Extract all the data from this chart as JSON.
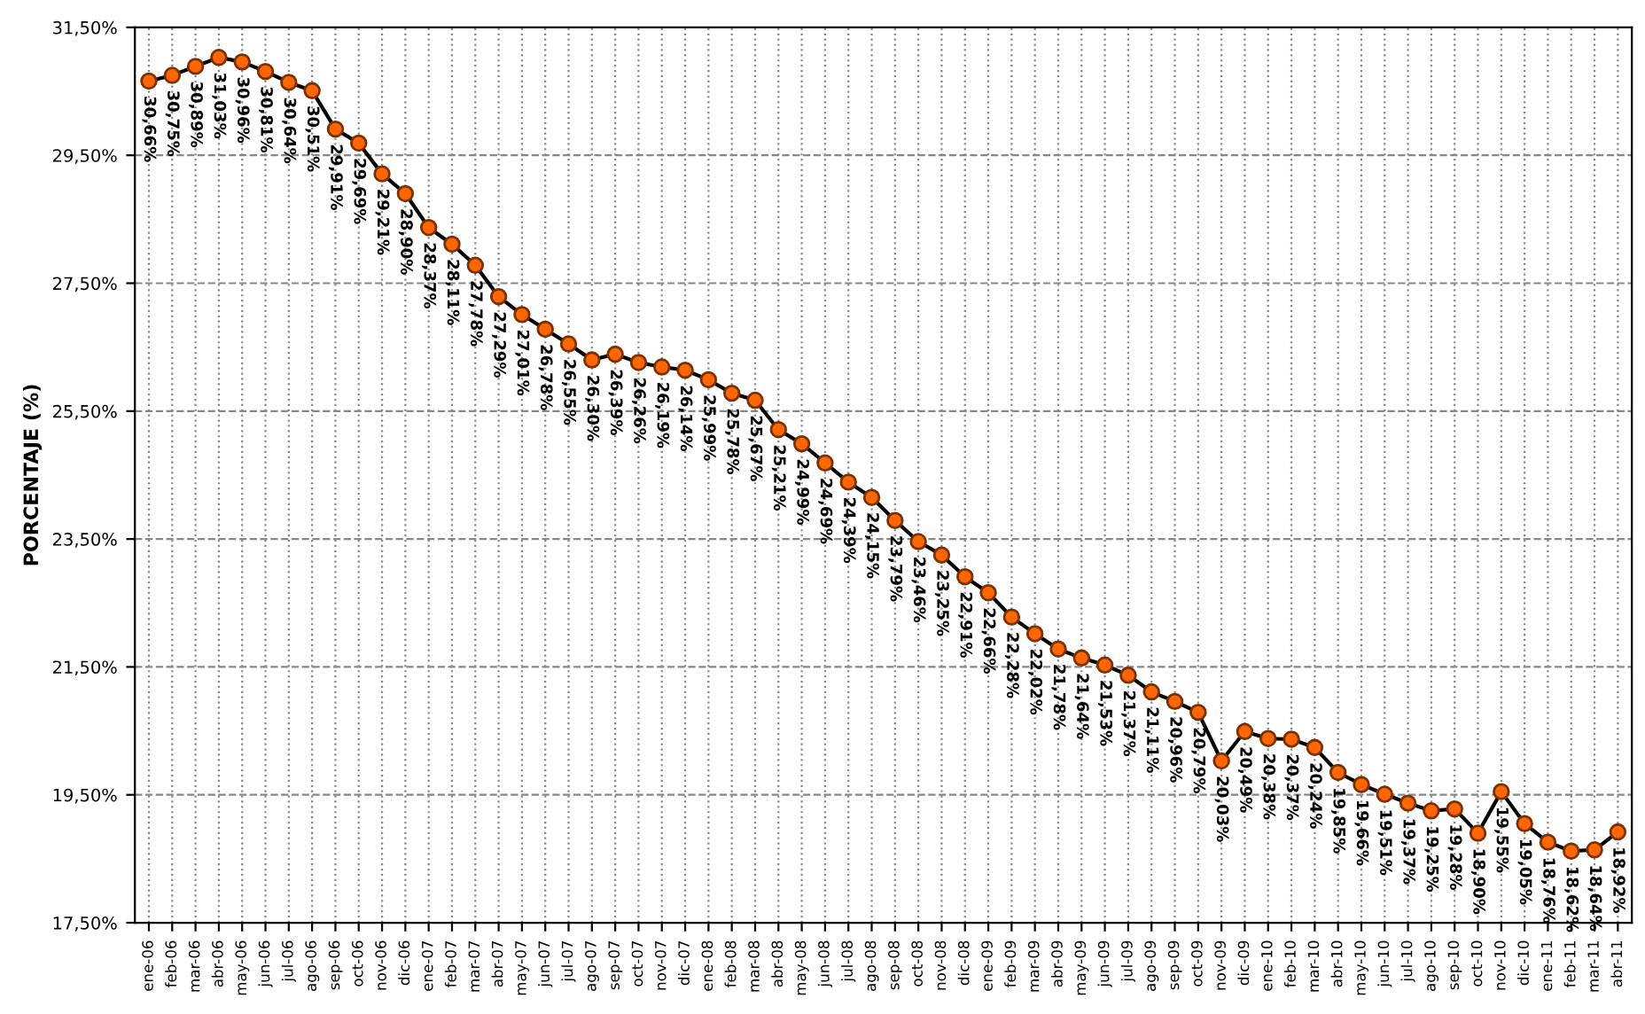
{
  "chart_data": {
    "type": "line",
    "ylabel": "PORCENTAJE (%)",
    "categories": [
      "ene-06",
      "feb-06",
      "mar-06",
      "abr-06",
      "may-06",
      "jun-06",
      "jul-06",
      "ago-06",
      "sep-06",
      "oct-06",
      "nov-06",
      "dic-06",
      "ene-07",
      "feb-07",
      "mar-07",
      "abr-07",
      "may-07",
      "jun-07",
      "jul-07",
      "ago-07",
      "sep-07",
      "oct-07",
      "nov-07",
      "dic-07",
      "ene-08",
      "feb-08",
      "mar-08",
      "abr-08",
      "may-08",
      "jun-08",
      "jul-08",
      "ago-08",
      "sep-08",
      "oct-08",
      "nov-08",
      "dic-08",
      "ene-09",
      "feb-09",
      "mar-09",
      "abr-09",
      "may-09",
      "jun-09",
      "jul-09",
      "ago-09",
      "sep-09",
      "oct-09",
      "nov-09",
      "dic-09",
      "ene-10",
      "feb-10",
      "mar-10",
      "abr-10",
      "may-10",
      "jun-10",
      "jul-10",
      "ago-10",
      "sep-10",
      "oct-10",
      "nov-10",
      "dic-10",
      "ene-11",
      "feb-11",
      "mar-11",
      "abr-11"
    ],
    "series": [
      {
        "color": "#000000",
        "values": [
          30.66,
          30.75,
          30.89,
          31.03,
          30.96,
          30.81,
          30.64,
          30.51,
          29.91,
          29.69,
          29.21,
          28.9,
          28.37,
          28.11,
          27.78,
          27.29,
          27.01,
          26.78,
          26.55,
          26.3,
          26.39,
          26.26,
          26.19,
          26.14,
          25.99,
          25.78,
          25.67,
          25.21,
          24.99,
          24.69,
          24.39,
          24.15,
          23.79,
          23.46,
          23.25,
          22.91,
          22.66,
          22.28,
          22.02,
          21.78,
          21.64,
          21.53,
          21.37,
          21.11,
          20.96,
          20.79,
          20.03,
          20.49,
          20.38,
          20.37,
          20.24,
          19.85,
          19.66,
          19.51,
          19.37,
          19.25,
          19.28,
          18.9,
          19.55,
          19.05,
          18.76,
          18.62,
          18.64,
          18.92
        ],
        "value_labels": [
          "30,66%",
          "30,75%",
          "30,89%",
          "31,03%",
          "30,96%",
          "30,81%",
          "30,64%",
          "30,51%",
          "29,91%",
          "29,69%",
          "29,21%",
          "28,90%",
          "28,37%",
          "28,11%",
          "27,78%",
          "27,29%",
          "27,01%",
          "26,78%",
          "26,55%",
          "26,30%",
          "26,39%",
          "26,26%",
          "26,19%",
          "26,14%",
          "25,99%",
          "25,78%",
          "25,67%",
          "25,21%",
          "24,99%",
          "24,69%",
          "24,39%",
          "24,15%",
          "23,79%",
          "23,46%",
          "23,25%",
          "22,91%",
          "22,66%",
          "22,28%",
          "22,02%",
          "21,78%",
          "21,64%",
          "21,53%",
          "21,37%",
          "21,11%",
          "20,96%",
          "20,79%",
          "20,03%",
          "20,49%",
          "20,38%",
          "20,37%",
          "20,24%",
          "19,85%",
          "19,66%",
          "19,51%",
          "19,37%",
          "19,25%",
          "19,28%",
          "18,90%",
          "19,55%",
          "19,05%",
          "18,76%",
          "18,62%",
          "18,64%",
          "18,92%"
        ]
      }
    ],
    "marker": "circle",
    "ylim": [
      17.5,
      31.5
    ],
    "yticks": [
      {
        "value": 17.5,
        "label": "17,50%"
      },
      {
        "value": 19.5,
        "label": "19,50%"
      },
      {
        "value": 21.5,
        "label": "21,50%"
      },
      {
        "value": 23.5,
        "label": "23,50%"
      },
      {
        "value": 25.5,
        "label": "25,50%"
      },
      {
        "value": 27.5,
        "label": "27,50%"
      },
      {
        "value": 29.5,
        "label": "29,50%"
      },
      {
        "value": 31.5,
        "label": "31,50%"
      }
    ],
    "grid": true,
    "legend": false
  }
}
